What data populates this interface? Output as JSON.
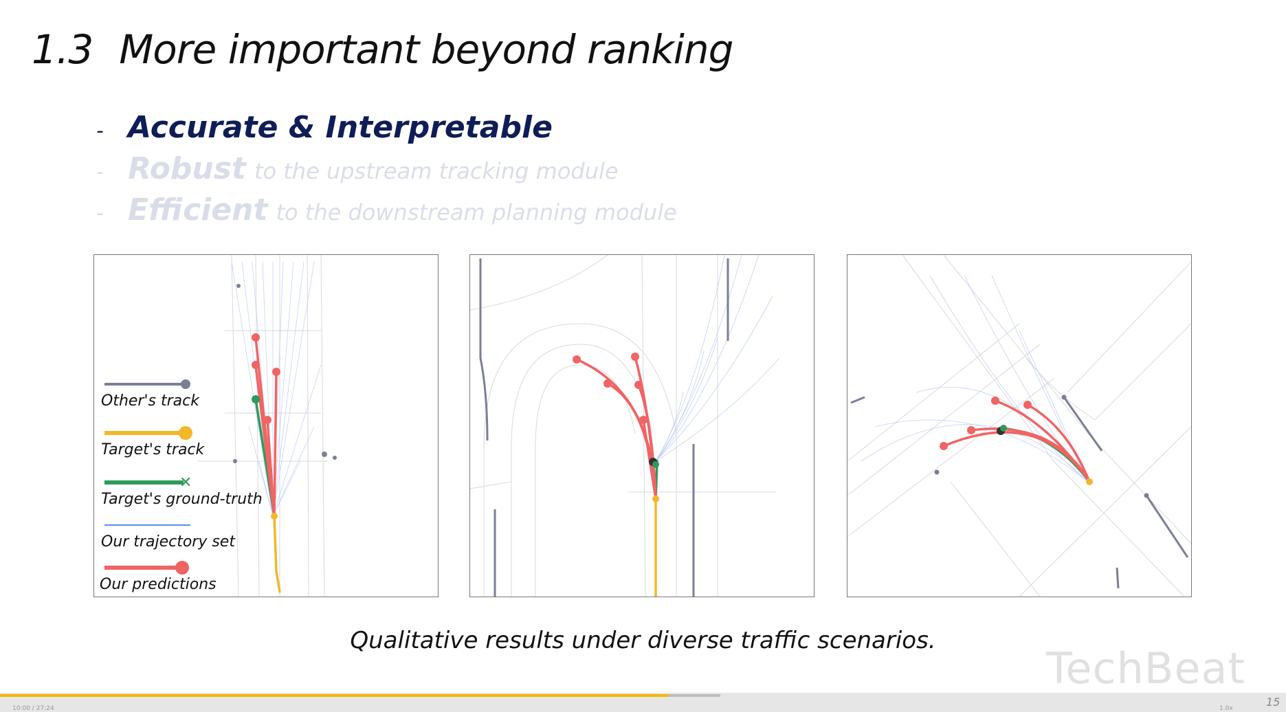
{
  "slide": {
    "number_label": "1.3",
    "title": "More important beyond ranking",
    "bullets": [
      {
        "dash": "-",
        "head": "Accurate & Interpretable",
        "tail": ""
      },
      {
        "dash": "-",
        "head": "Robust",
        "tail": "to the upstream tracking module"
      },
      {
        "dash": "-",
        "head": "Efficient",
        "tail": "to the downstream planning module"
      }
    ],
    "caption": "Qualitative results under diverse traffic scenarios.",
    "page_number": "15"
  },
  "legend": [
    {
      "label": "Other's track",
      "color": "#7a7f96"
    },
    {
      "label": "Target's track",
      "color": "#f2b82a"
    },
    {
      "label": "Target's ground-truth",
      "color": "#2e9a5a"
    },
    {
      "label": "Our trajectory set",
      "color": "#5b8ef0"
    },
    {
      "label": "Our predictions",
      "color": "#f06464"
    }
  ],
  "watermark": "TechBeat",
  "player": {
    "progress": 0.52,
    "buffered": 0.56,
    "time_text": "10:00 / 27:24",
    "speed_text": "1.0x"
  }
}
